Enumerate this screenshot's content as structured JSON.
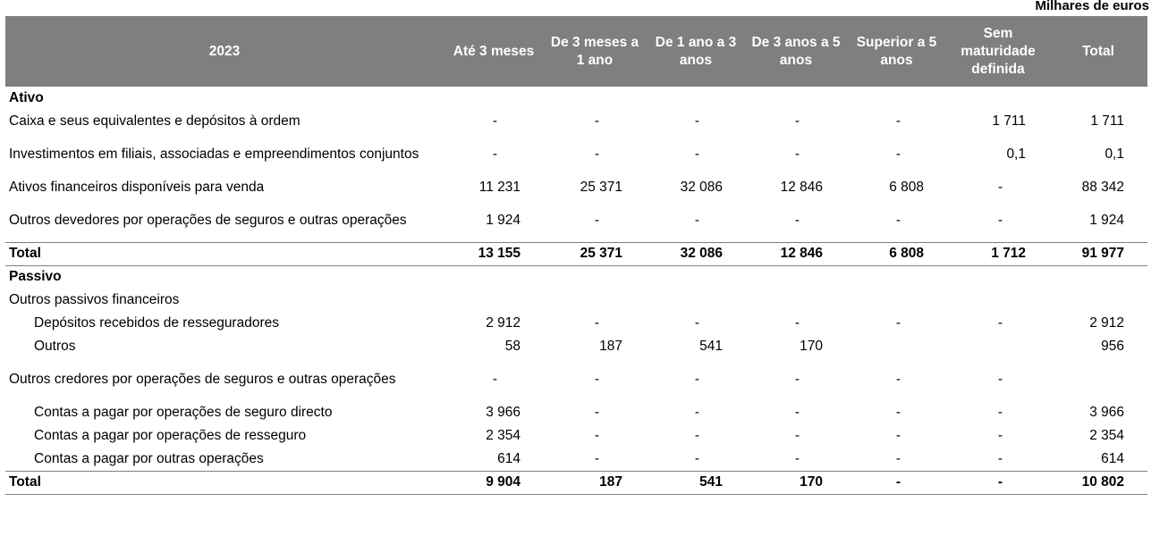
{
  "units": "Milhares de euros",
  "header": {
    "year": "2023",
    "columns": [
      "Até 3 meses",
      "De 3 meses a 1 ano",
      "De 1 ano a 3 anos",
      "De 3 anos a 5 anos",
      "Superior a 5 anos",
      "Sem maturidade definida",
      "Total"
    ]
  },
  "ativo": {
    "title": "Ativo",
    "rows": [
      {
        "label": "Caixa e seus equivalentes e depósitos à ordem",
        "v": [
          "-",
          "-",
          "-",
          "-",
          "-",
          "1 711",
          "1 711"
        ]
      },
      {
        "label": "Investimentos em filiais, associadas e empreendimentos conjuntos",
        "v": [
          "-",
          "-",
          "-",
          "-",
          "-",
          "0,1",
          "0,1"
        ]
      },
      {
        "label": "Ativos financeiros disponíveis para venda",
        "v": [
          "11 231",
          "25 371",
          "32 086",
          "12 846",
          "6 808",
          "-",
          "88 342"
        ]
      },
      {
        "label": "Outros devedores por operações de seguros e outras operações",
        "v": [
          "1 924",
          "-",
          "-",
          "-",
          "-",
          "-",
          "1 924"
        ]
      }
    ],
    "total": {
      "label": "Total",
      "v": [
        "13 155",
        "25 371",
        "32 086",
        "12 846",
        "6 808",
        "1 712",
        "91 977"
      ]
    }
  },
  "passivo": {
    "title": "Passivo",
    "group1": "Outros passivos financeiros",
    "rows1": [
      {
        "label": "Depósitos recebidos de resseguradores",
        "v": [
          "2 912",
          "-",
          "-",
          "-",
          "-",
          "-",
          "2 912"
        ]
      },
      {
        "label": "Outros",
        "v": [
          "58",
          "187",
          "541",
          "170",
          "",
          "",
          "956"
        ]
      }
    ],
    "group2": {
      "label": "Outros credores por operações de seguros e outras operações",
      "v": [
        "-",
        "-",
        "-",
        "-",
        "-",
        "-",
        ""
      ]
    },
    "rows2": [
      {
        "label": "Contas a pagar por operações de seguro directo",
        "v": [
          "3 966",
          "-",
          "-",
          "-",
          "-",
          "-",
          "3 966"
        ]
      },
      {
        "label": "Contas a pagar por operações de resseguro",
        "v": [
          "2 354",
          "-",
          "-",
          "-",
          "-",
          "-",
          "2 354"
        ]
      },
      {
        "label": "Contas a pagar por outras operações",
        "v": [
          "614",
          "-",
          "-",
          "-",
          "-",
          "-",
          "614"
        ]
      }
    ],
    "total": {
      "label": "Total",
      "v": [
        "9 904",
        "187",
        "541",
        "170",
        "-",
        "-",
        "10 802"
      ]
    }
  }
}
